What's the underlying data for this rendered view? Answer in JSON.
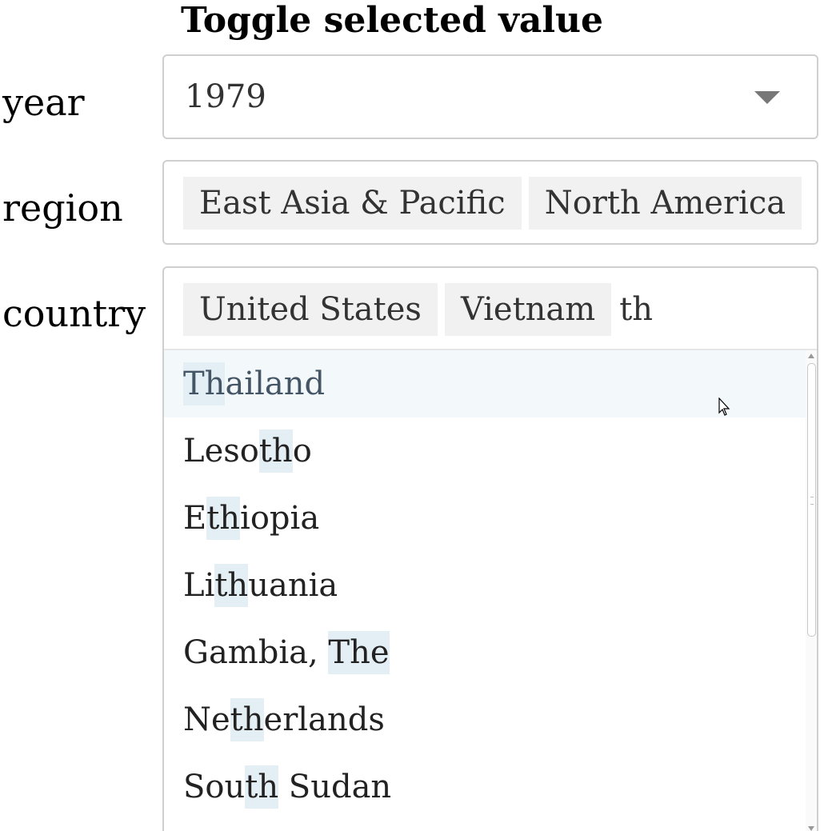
{
  "title": "Toggle selected value",
  "fields": {
    "year": {
      "label": "year",
      "value": "1979"
    },
    "region": {
      "label": "region",
      "selected": [
        "East Asia & Pacific",
        "North America"
      ]
    },
    "country": {
      "label": "country",
      "selected": [
        "United States",
        "Vietnam"
      ],
      "search_text": "th",
      "options": [
        {
          "pre": "",
          "match": "Th",
          "post": "ailand"
        },
        {
          "pre": "Leso",
          "match": "th",
          "post": "o"
        },
        {
          "pre": "E",
          "match": "th",
          "post": "iopia"
        },
        {
          "pre": "Li",
          "match": "th",
          "post": "uania"
        },
        {
          "pre": "Gambia, ",
          "match": "The",
          "post": ""
        },
        {
          "pre": "Ne",
          "match": "th",
          "post": "erlands"
        },
        {
          "pre": "Sou",
          "match": "th",
          "post": " Sudan"
        }
      ]
    }
  },
  "icons": {
    "year_dropdown": "chevron-down-icon",
    "cursor": "mouse-pointer-icon"
  }
}
